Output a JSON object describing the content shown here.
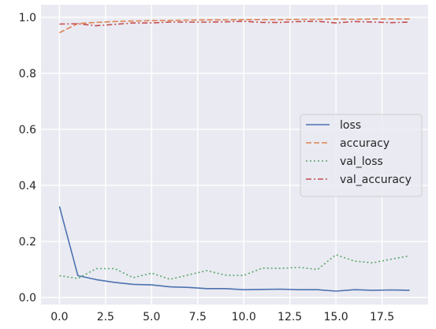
{
  "chart_data": {
    "type": "line",
    "x": [
      0,
      1,
      2,
      3,
      4,
      5,
      6,
      7,
      8,
      9,
      10,
      11,
      12,
      13,
      14,
      15,
      16,
      17,
      18,
      19
    ],
    "series": [
      {
        "name": "loss",
        "color": "#4c72b0",
        "dash": "solid",
        "values": [
          0.325,
          0.078,
          0.064,
          0.054,
          0.047,
          0.045,
          0.038,
          0.036,
          0.032,
          0.032,
          0.028,
          0.029,
          0.03,
          0.028,
          0.028,
          0.023,
          0.028,
          0.026,
          0.027,
          0.026
        ]
      },
      {
        "name": "accuracy",
        "color": "#dd8452",
        "dash": "dashed",
        "values": [
          0.945,
          0.978,
          0.982,
          0.985,
          0.987,
          0.988,
          0.989,
          0.99,
          0.991,
          0.991,
          0.992,
          0.992,
          0.992,
          0.993,
          0.993,
          0.994,
          0.993,
          0.994,
          0.994,
          0.994
        ]
      },
      {
        "name": "val_loss",
        "color": "#55a868",
        "dash": "dotted",
        "values": [
          0.078,
          0.068,
          0.103,
          0.103,
          0.071,
          0.087,
          0.065,
          0.081,
          0.096,
          0.08,
          0.079,
          0.105,
          0.104,
          0.108,
          0.1,
          0.153,
          0.13,
          0.124,
          0.137,
          0.149
        ]
      },
      {
        "name": "val_accuracy",
        "color": "#c44e52",
        "dash": "dashdot",
        "values": [
          0.976,
          0.977,
          0.97,
          0.975,
          0.98,
          0.98,
          0.983,
          0.983,
          0.983,
          0.984,
          0.986,
          0.982,
          0.982,
          0.985,
          0.986,
          0.98,
          0.985,
          0.983,
          0.981,
          0.983
        ]
      }
    ],
    "xlim": [
      -1,
      20
    ],
    "ylim": [
      -0.025,
      1.045
    ],
    "xticks": [
      0.0,
      2.5,
      5.0,
      7.5,
      10.0,
      12.5,
      15.0,
      17.5
    ],
    "xtick_labels": [
      "0.0",
      "2.5",
      "5.0",
      "7.5",
      "10.0",
      "12.5",
      "15.0",
      "17.5"
    ],
    "yticks": [
      0.0,
      0.2,
      0.4,
      0.6,
      0.8,
      1.0
    ],
    "ytick_labels": [
      "0.0",
      "0.2",
      "0.4",
      "0.6",
      "0.8",
      "1.0"
    ],
    "grid": true,
    "legend_position": "center-right",
    "background_color": "#eaeaf2",
    "grid_color": "#ffffff"
  }
}
